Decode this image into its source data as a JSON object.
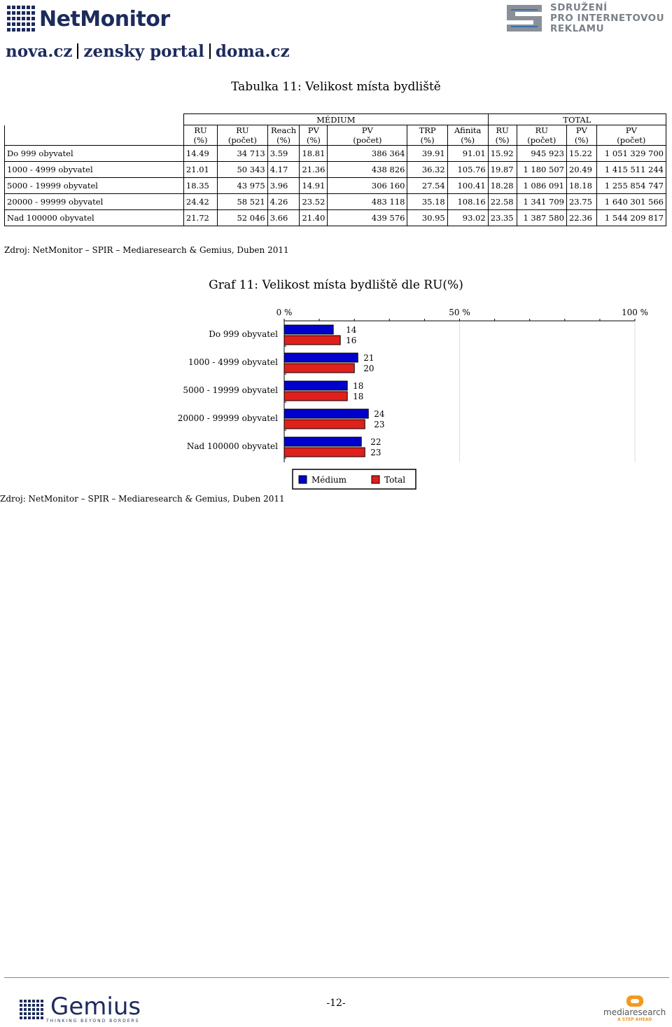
{
  "header": {
    "netmonitor_logo": "NetMonitor",
    "spir_logo_lines": [
      "SDRUŽENÍ",
      "PRO INTERNETOVOU",
      "REKLAMU"
    ],
    "sites": [
      "nova.cz",
      "zensky portal",
      "doma.cz"
    ]
  },
  "table": {
    "title": "Tabulka 11: Velikost místa bydliště",
    "group_medium": "MÉDIUM",
    "group_total": "TOTAL",
    "columns": [
      [
        "RU",
        "(%)"
      ],
      [
        "RU",
        "(počet)"
      ],
      [
        "Reach",
        "(%)"
      ],
      [
        "PV",
        "(%)"
      ],
      [
        "PV",
        "(počet)"
      ],
      [
        "TRP",
        "(%)"
      ],
      [
        "Afinita",
        "(%)"
      ],
      [
        "RU",
        "(%)"
      ],
      [
        "RU",
        "(počet)"
      ],
      [
        "PV",
        "(%)"
      ],
      [
        "PV",
        "(počet)"
      ]
    ],
    "rows": [
      {
        "label": "Do 999 obyvatel",
        "cells": [
          "14.49",
          "34 713",
          "3.59",
          "18.81",
          "386 364",
          "39.91",
          "91.01",
          "15.92",
          "945 923",
          "15.22",
          "1 051 329 700"
        ]
      },
      {
        "label": "1000 - 4999 obyvatel",
        "cells": [
          "21.01",
          "50 343",
          "4.17",
          "21.36",
          "438 826",
          "36.32",
          "105.76",
          "19.87",
          "1 180 507",
          "20.49",
          "1 415 511 244"
        ]
      },
      {
        "label": "5000 - 19999 obyvatel",
        "cells": [
          "18.35",
          "43 975",
          "3.96",
          "14.91",
          "306 160",
          "27.54",
          "100.41",
          "18.28",
          "1 086 091",
          "18.18",
          "1 255 854 747"
        ]
      },
      {
        "label": "20000 - 99999 obyvatel",
        "cells": [
          "24.42",
          "58 521",
          "4.26",
          "23.52",
          "483 118",
          "35.18",
          "108.16",
          "22.58",
          "1 341 709",
          "23.75",
          "1 640 301 566"
        ]
      },
      {
        "label": "Nad 100000 obyvatel",
        "cells": [
          "21.72",
          "52 046",
          "3.66",
          "21.40",
          "439 576",
          "30.95",
          "93.02",
          "23.35",
          "1 387 580",
          "22.36",
          "1 544 209 817"
        ]
      }
    ],
    "source": "Zdroj: NetMonitor – SPIR – Mediaresearch & Gemius, Duben 2011"
  },
  "chart_data": {
    "type": "bar",
    "orientation": "horizontal",
    "title": "Graf 11: Velikost místa bydliště dle RU(%)",
    "categories": [
      "Do 999 obyvatel",
      "1000 - 4999 obyvatel",
      "5000 - 19999 obyvatel",
      "20000 - 99999 obyvatel",
      "Nad 100000 obyvatel"
    ],
    "series": [
      {
        "name": "Médium",
        "values": [
          14,
          21,
          18,
          24,
          22
        ],
        "color": "#0000cc"
      },
      {
        "name": "Total",
        "values": [
          16,
          20,
          18,
          23,
          23
        ],
        "color": "#e0201b"
      }
    ],
    "xlim": [
      0,
      100
    ],
    "x_ticks": [
      "0 %",
      "50 %",
      "100 %"
    ],
    "x_axis_position": "top",
    "grid": true,
    "legend_position": "bottom"
  },
  "chart_source": "Zdroj: NetMonitor – SPIR – Mediaresearch & Gemius, Duben 2011",
  "footer": {
    "gemius_logo": "Gemius",
    "gemius_tagline": "THINKING BEYOND BORDERS",
    "page_number": "-12-",
    "mediaresearch_logo": "mediaresearch",
    "mediaresearch_tagline": "A STEP AHEAD"
  }
}
